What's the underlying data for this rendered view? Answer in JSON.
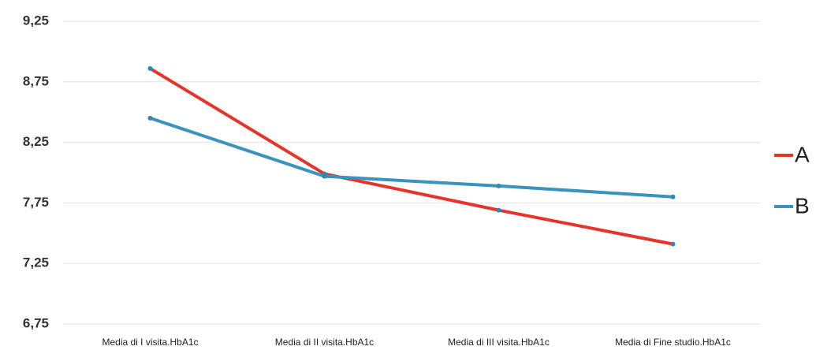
{
  "chart_data": {
    "type": "line",
    "categories": [
      "Media di I visita.HbA1c",
      "Media di II visita.HbA1c",
      "Media di III visita.HbA1c",
      "Media di Fine studio.HbA1c"
    ],
    "series": [
      {
        "name": "A",
        "color": "#e8332a",
        "values": [
          8.86,
          7.99,
          7.69,
          7.41
        ]
      },
      {
        "name": "B",
        "color": "#3a93bf",
        "values": [
          8.45,
          7.97,
          7.89,
          7.8
        ]
      }
    ],
    "ylim": [
      6.75,
      9.25
    ],
    "yticks": [
      {
        "value": 6.75,
        "label": "6,75"
      },
      {
        "value": 7.25,
        "label": "7,25"
      },
      {
        "value": 7.75,
        "label": "7,75"
      },
      {
        "value": 8.25,
        "label": "8,25"
      },
      {
        "value": 8.75,
        "label": "8,75"
      },
      {
        "value": 9.25,
        "label": "9,25"
      }
    ],
    "grid": true,
    "legend": "right"
  }
}
